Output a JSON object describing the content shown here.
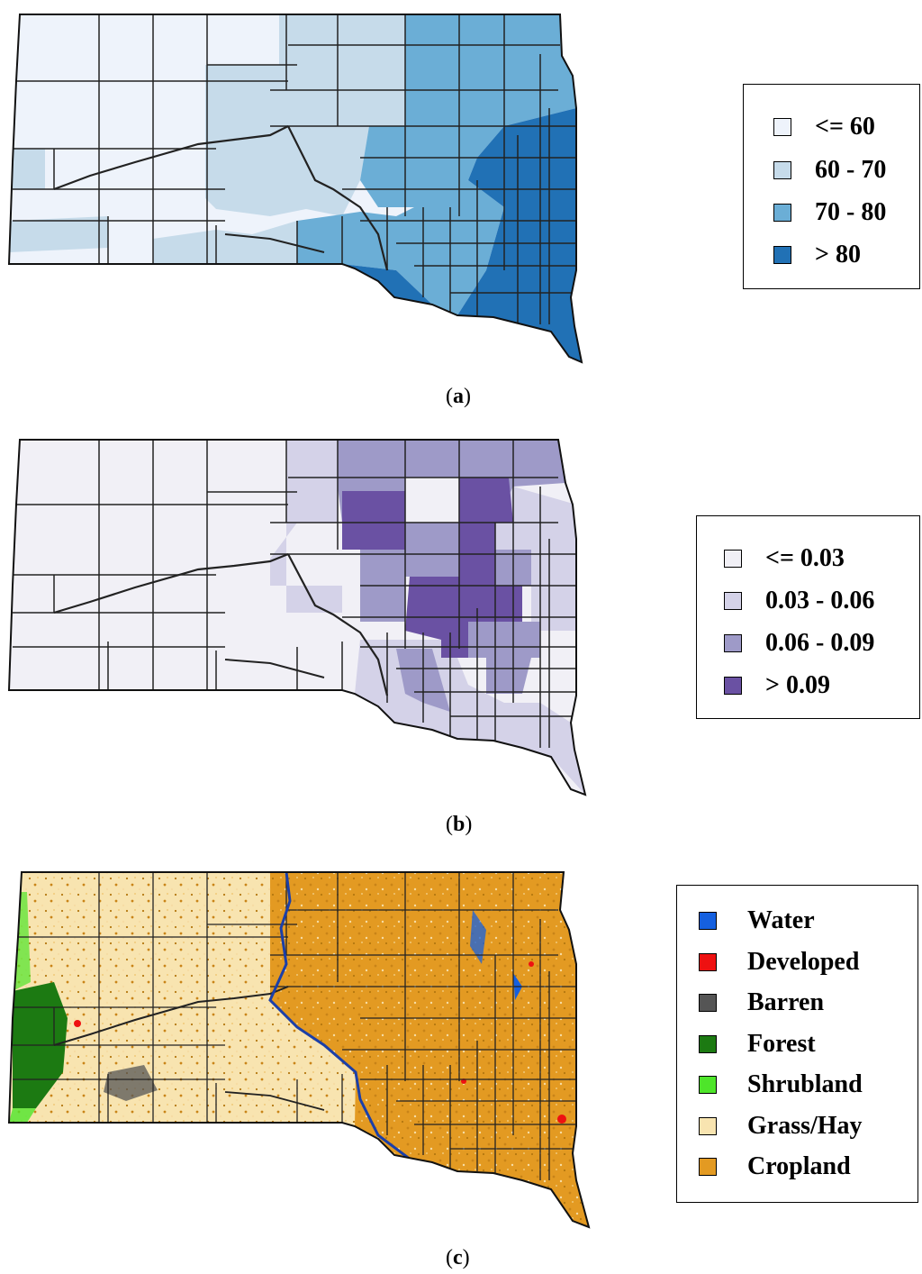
{
  "panels": [
    {
      "caption_letter": "a",
      "legend": [
        {
          "label": "<= 60",
          "color": "#eef3fb"
        },
        {
          "label": "60 - 70",
          "color": "#c6dbea"
        },
        {
          "label": "70 - 80",
          "color": "#6baed6"
        },
        {
          "label": "> 80",
          "color": "#2171b5"
        }
      ]
    },
    {
      "caption_letter": "b",
      "legend": [
        {
          "label": "<= 0.03",
          "color": "#f1f0f6"
        },
        {
          "label": "0.03 - 0.06",
          "color": "#d4d2e8"
        },
        {
          "label": "0.06 - 0.09",
          "color": "#9e9ac8"
        },
        {
          "label": "> 0.09",
          "color": "#6a51a3"
        }
      ]
    },
    {
      "caption_letter": "c",
      "legend": [
        {
          "label": "Water",
          "color": "#1560e0"
        },
        {
          "label": "Developed",
          "color": "#ee1111"
        },
        {
          "label": "Barren",
          "color": "#555555"
        },
        {
          "label": "Forest",
          "color": "#1c7a12"
        },
        {
          "label": "Shrubland",
          "color": "#4ee52a"
        },
        {
          "label": "Grass/Hay",
          "color": "#f8e4b0"
        },
        {
          "label": "Cropland",
          "color": "#e39a22"
        }
      ]
    }
  ]
}
